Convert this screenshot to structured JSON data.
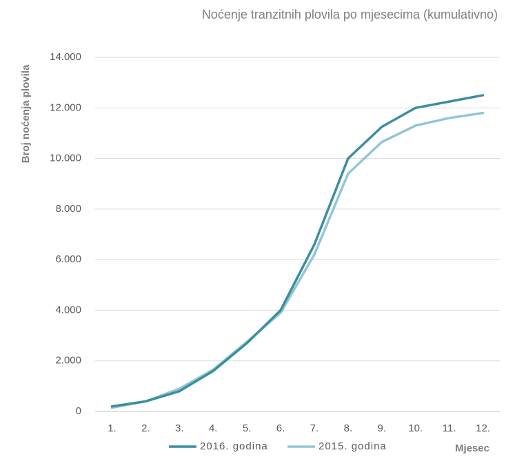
{
  "chart_data": {
    "type": "line",
    "title": "Noćenje tranzitnih plovila po mjesecima (kumulativno)",
    "y_label": "Broj noćenja plovila",
    "x_label": "Mjesec",
    "categories": [
      "1.",
      "2.",
      "3.",
      "4.",
      "5.",
      "6.",
      "7.",
      "8.",
      "9.",
      "10.",
      "11.",
      "12."
    ],
    "series": [
      {
        "name": "2016. godina",
        "color": "#3b8e9f",
        "values": [
          200,
          400,
          800,
          1600,
          2700,
          4000,
          6600,
          10000,
          11250,
          12000,
          12250,
          12500
        ]
      },
      {
        "name": "2015. godina",
        "color": "#93c6d4",
        "values": [
          150,
          400,
          900,
          1650,
          2750,
          3900,
          6200,
          9400,
          10650,
          11300,
          11600,
          11800
        ]
      }
    ],
    "ylim": [
      0,
      14000
    ],
    "yticks": [
      0,
      {
        "value": 2000,
        "label": "2.000"
      },
      {
        "value": 4000,
        "label": "4.000"
      },
      {
        "value": 6000,
        "label": "6.000"
      },
      {
        "value": 8000,
        "label": "8.000"
      },
      {
        "value": 10000,
        "label": "10.000"
      },
      {
        "value": 12000,
        "label": "12.000"
      },
      {
        "value": 14000,
        "label": "14.000"
      }
    ],
    "grid": true,
    "legend": "bottom"
  }
}
